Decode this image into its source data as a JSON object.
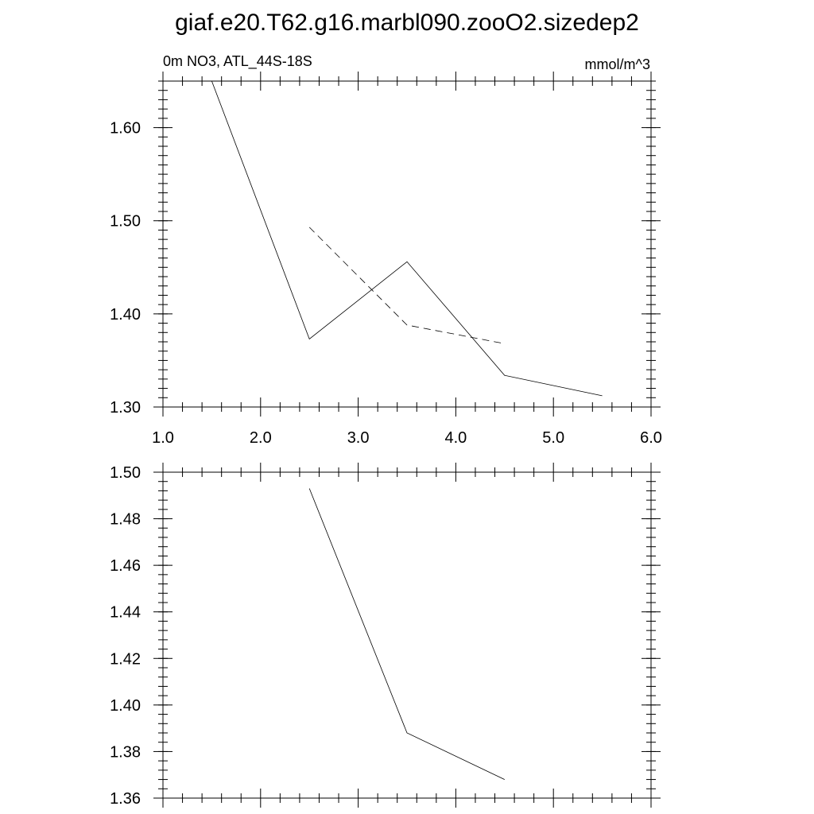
{
  "title": "giaf.e20.T62.g16.marbl090.zooO2.sizedep2",
  "chart_data": [
    {
      "type": "line",
      "left_string": "0m NO3, ATL_44S-18S",
      "right_string": "mmol/m^3",
      "xlim": [
        1.0,
        6.0
      ],
      "ylim": [
        1.3,
        1.65
      ],
      "x_ticks": [
        "1.0",
        "2.0",
        "3.0",
        "4.0",
        "5.0",
        "6.0"
      ],
      "y_ticks": [
        "1.30",
        "1.40",
        "1.50",
        "1.60"
      ],
      "grid": false,
      "series": [
        {
          "style": "solid",
          "x": [
            1.5,
            2.5,
            3.5,
            4.5,
            5.5
          ],
          "y": [
            1.65,
            1.373,
            1.456,
            1.334,
            1.312
          ]
        },
        {
          "style": "dashed",
          "x": [
            2.5,
            3.5,
            4.5
          ],
          "y": [
            1.493,
            1.388,
            1.368
          ]
        }
      ]
    },
    {
      "type": "line",
      "xlim": [
        1.0,
        6.0
      ],
      "ylim": [
        1.36,
        1.5
      ],
      "y_ticks": [
        "1.36",
        "1.38",
        "1.40",
        "1.42",
        "1.44",
        "1.46",
        "1.48",
        "1.50"
      ],
      "grid": false,
      "series": [
        {
          "style": "solid",
          "x": [
            2.5,
            3.5,
            4.5
          ],
          "y": [
            1.493,
            1.388,
            1.368
          ]
        }
      ]
    }
  ]
}
